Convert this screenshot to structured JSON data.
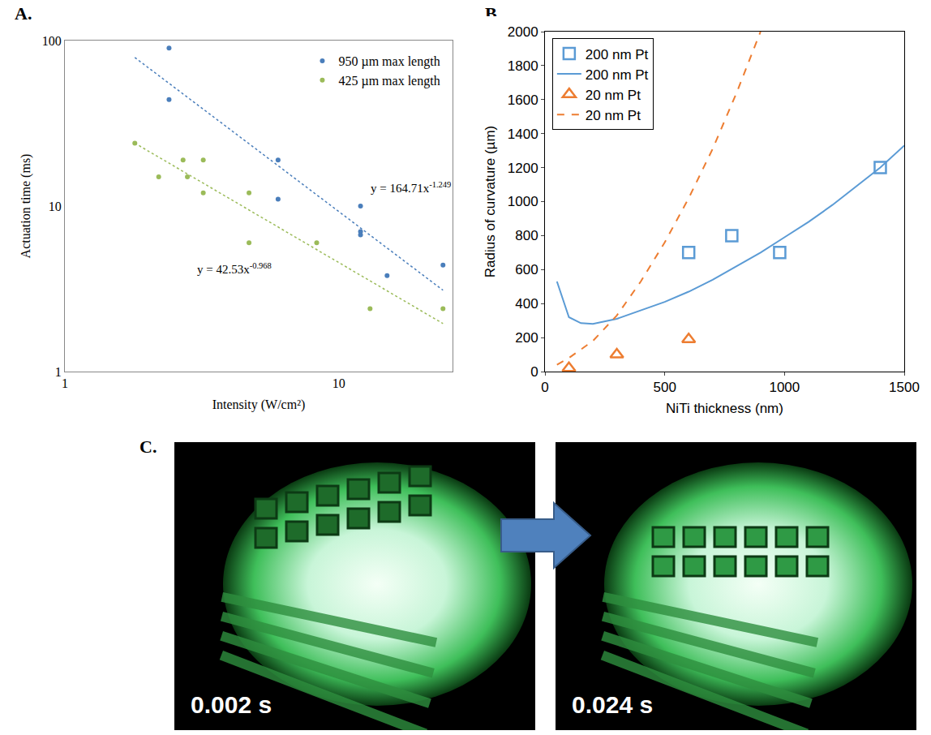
{
  "chart_data": [
    {
      "label": "A.",
      "type": "scatter",
      "log": true,
      "grid": false,
      "legend": "top-right",
      "x_label": "Intensity (W/cm²)",
      "y_label": "Actuation time (ms)",
      "xlim": [
        1,
        26
      ],
      "ylim": [
        1,
        100
      ],
      "xticks": [
        1,
        10
      ],
      "yticks": [
        1,
        10,
        100
      ],
      "series": [
        {
          "name": "950 µm max length",
          "color": "#4a7ebb",
          "marker": "circle",
          "x": [
            2.4,
            2.4,
            6,
            6,
            12,
            12,
            12,
            15,
            24
          ],
          "values": [
            90,
            44,
            19,
            11,
            10,
            7,
            6.7,
            3.8,
            4.4
          ],
          "fit": {
            "x": [
              1.8,
              24
            ],
            "values": [
              79,
              3.1
            ],
            "line_style": "dot",
            "equation": "y = 164.71x",
            "exponent": "-1.249"
          }
        },
        {
          "name": "425 µm max length",
          "color": "#9bbb59",
          "marker": "circle",
          "x": [
            1.8,
            2.2,
            2.7,
            2.8,
            3.2,
            3.2,
            4.7,
            4.7,
            8.3,
            13,
            24
          ],
          "values": [
            24,
            15,
            19,
            15,
            19,
            12,
            12,
            6,
            6,
            2.4,
            2.4
          ],
          "fit": {
            "x": [
              1.8,
              24
            ],
            "values": [
              24,
              1.95
            ],
            "line_style": "dot",
            "equation": "y = 42.53x",
            "exponent": "-0.968"
          }
        }
      ]
    },
    {
      "label": "B.",
      "type": "scatter",
      "grid": false,
      "legend": "top-left",
      "x_label": "NiTi thickness (nm)",
      "y_label": "Radius of curvature (µm)",
      "xlim": [
        0,
        1500
      ],
      "ylim": [
        0,
        2000
      ],
      "xticks": [
        0,
        500,
        1000,
        1500
      ],
      "yticks": [
        0,
        200,
        400,
        600,
        800,
        1000,
        1200,
        1400,
        1600,
        1800,
        2000
      ],
      "series": [
        {
          "name": "200 nm Pt",
          "type": "scatter",
          "color": "#5b9bd5",
          "marker": "square-open",
          "x": [
            600,
            780,
            980,
            1400
          ],
          "values": [
            700,
            800,
            700,
            1200
          ]
        },
        {
          "name": "200 nm Pt",
          "type": "line",
          "color": "#5b9bd5",
          "line_style": "solid",
          "x": [
            50,
            100,
            150,
            200,
            300,
            400,
            500,
            600,
            700,
            800,
            900,
            1000,
            1100,
            1200,
            1300,
            1400,
            1500
          ],
          "values": [
            530,
            320,
            285,
            280,
            310,
            360,
            410,
            470,
            540,
            620,
            700,
            790,
            880,
            980,
            1090,
            1200,
            1330
          ]
        },
        {
          "name": "20 nm Pt",
          "type": "scatter",
          "color": "#ed7d31",
          "marker": "triangle-up-open",
          "x": [
            100,
            300,
            600
          ],
          "values": [
            20,
            100,
            190
          ]
        },
        {
          "name": "20 nm Pt",
          "type": "line",
          "color": "#ed7d31",
          "line_style": "dash",
          "x": [
            50,
            100,
            200,
            300,
            400,
            500,
            600,
            700,
            800,
            900
          ],
          "values": [
            40,
            80,
            180,
            330,
            530,
            760,
            1020,
            1310,
            1640,
            2000
          ]
        }
      ]
    },
    {
      "label": "C.",
      "type": "photo",
      "frames": [
        "0.002 s",
        "0.024 s"
      ]
    }
  ]
}
